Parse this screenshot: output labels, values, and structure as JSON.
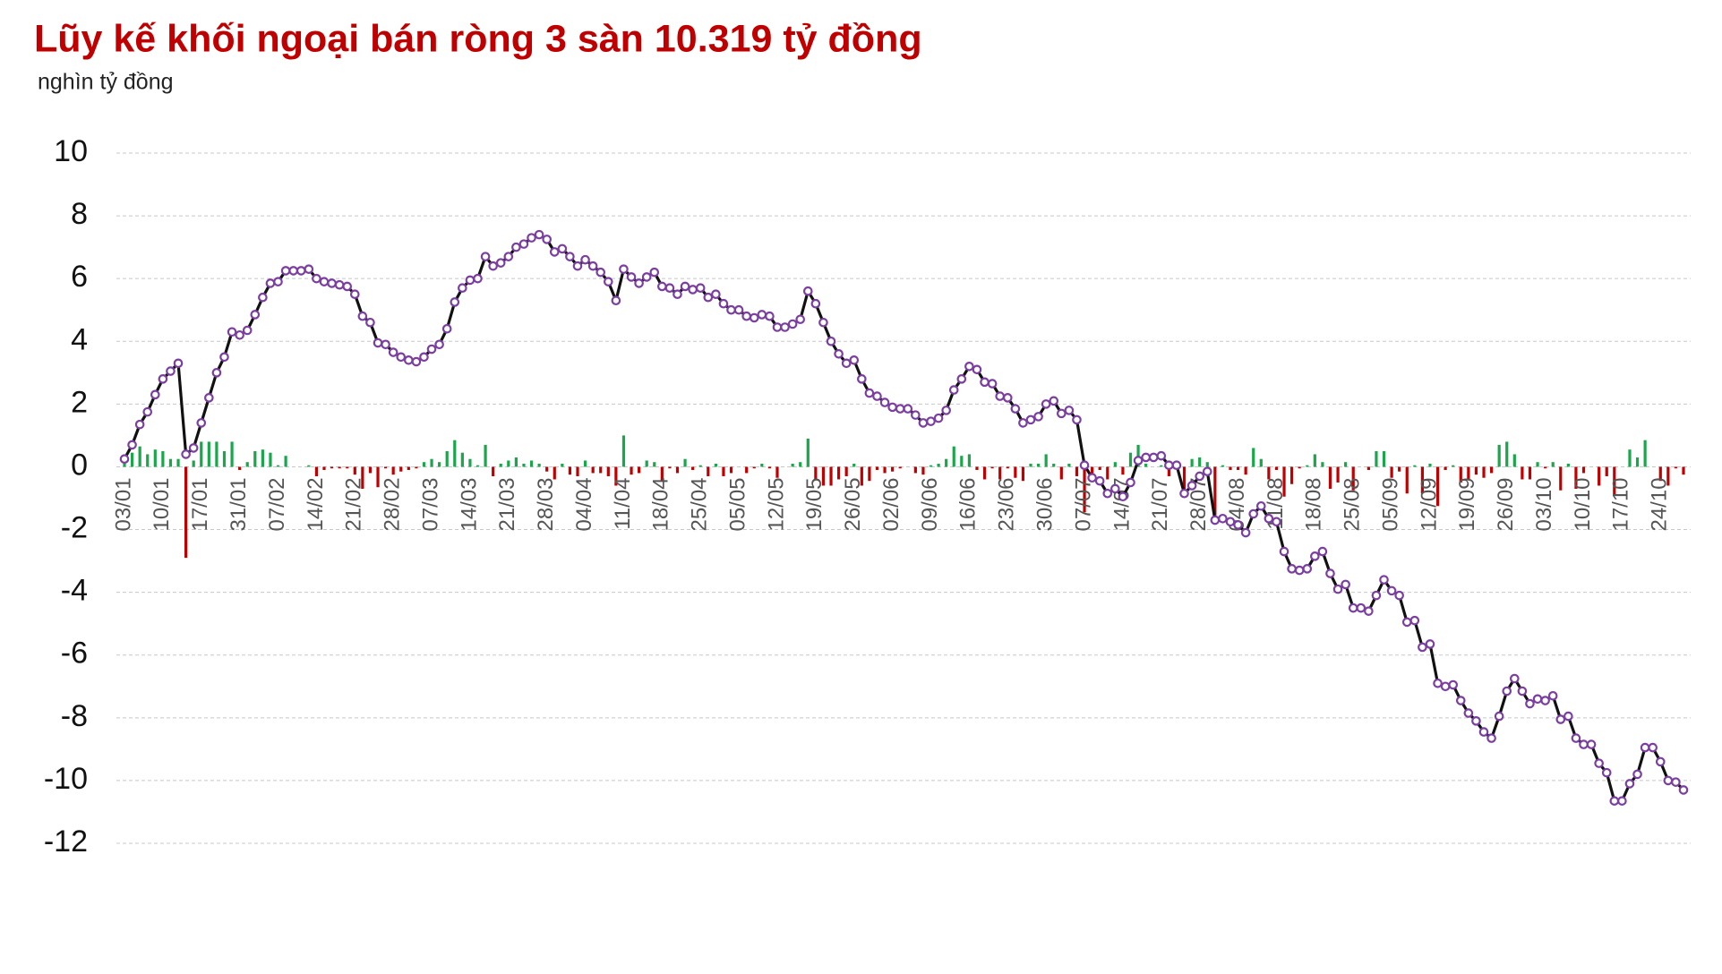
{
  "chart_data": {
    "type": "line_bar",
    "title": "Lũy kế khối ngoại bán ròng 3 sàn 10.319 tỷ đồng",
    "subtitle": "nghìn tỷ đồng",
    "title_color": "#c00000",
    "categories": [
      "03/01",
      null,
      null,
      null,
      null,
      "10/01",
      null,
      null,
      null,
      null,
      "17/01",
      null,
      null,
      null,
      null,
      "31/01",
      null,
      null,
      null,
      null,
      "07/02",
      null,
      null,
      null,
      null,
      "14/02",
      null,
      null,
      null,
      null,
      "21/02",
      null,
      null,
      null,
      null,
      "28/02",
      null,
      null,
      null,
      null,
      "07/03",
      null,
      null,
      null,
      null,
      "14/03",
      null,
      null,
      null,
      null,
      "21/03",
      null,
      null,
      null,
      null,
      "28/03",
      null,
      null,
      null,
      null,
      "04/04",
      null,
      null,
      null,
      null,
      "11/04",
      null,
      null,
      null,
      null,
      "18/04",
      null,
      null,
      null,
      null,
      "25/04",
      null,
      null,
      null,
      null,
      "05/05",
      null,
      null,
      null,
      null,
      "12/05",
      null,
      null,
      null,
      null,
      "19/05",
      null,
      null,
      null,
      null,
      "26/05",
      null,
      null,
      null,
      null,
      "02/06",
      null,
      null,
      null,
      null,
      "09/06",
      null,
      null,
      null,
      null,
      "16/06",
      null,
      null,
      null,
      null,
      "23/06",
      null,
      null,
      null,
      null,
      "30/06",
      null,
      null,
      null,
      null,
      "07/07",
      null,
      null,
      null,
      null,
      "14/07",
      null,
      null,
      null,
      null,
      "21/07",
      null,
      null,
      null,
      null,
      "28/07",
      null,
      null,
      null,
      null,
      "04/08",
      null,
      null,
      null,
      null,
      "11/08",
      null,
      null,
      null,
      null,
      "18/08",
      null,
      null,
      null,
      null,
      "25/08",
      null,
      null,
      null,
      null,
      "05/09",
      null,
      null,
      null,
      null,
      "12/09",
      null,
      null,
      null,
      null,
      "19/09",
      null,
      null,
      null,
      null,
      "26/09",
      null,
      null,
      null,
      null,
      "03/10",
      null,
      null,
      null,
      null,
      "10/10",
      null,
      null,
      null,
      null,
      "17/10",
      null,
      null,
      null,
      null,
      "24/10",
      null,
      null,
      null
    ],
    "line": {
      "color": "#111111",
      "marker_color": "#7b3fa0",
      "values": [
        0.25,
        0.7,
        1.35,
        1.75,
        2.3,
        2.8,
        3.05,
        3.3,
        0.4,
        0.6,
        1.4,
        2.2,
        3.0,
        3.5,
        4.3,
        4.2,
        4.35,
        4.85,
        5.4,
        5.85,
        5.9,
        6.25,
        6.25,
        6.25,
        6.3,
        6.0,
        5.9,
        5.85,
        5.8,
        5.75,
        5.5,
        4.8,
        4.6,
        3.95,
        3.9,
        3.65,
        3.5,
        3.4,
        3.35,
        3.5,
        3.75,
        3.9,
        4.4,
        5.25,
        5.7,
        5.95,
        6.0,
        6.7,
        6.4,
        6.5,
        6.7,
        7.0,
        7.1,
        7.3,
        7.4,
        7.25,
        6.85,
        6.95,
        6.7,
        6.4,
        6.6,
        6.4,
        6.2,
        5.9,
        5.3,
        6.3,
        6.05,
        5.85,
        6.05,
        6.2,
        5.75,
        5.7,
        5.5,
        5.75,
        5.65,
        5.7,
        5.4,
        5.5,
        5.2,
        5.0,
        5.0,
        4.8,
        4.75,
        4.85,
        4.8,
        4.45,
        4.45,
        4.55,
        4.7,
        5.6,
        5.2,
        4.6,
        4.0,
        3.6,
        3.3,
        3.4,
        2.8,
        2.35,
        2.25,
        2.05,
        1.9,
        1.85,
        1.85,
        1.65,
        1.4,
        1.45,
        1.55,
        1.8,
        2.45,
        2.8,
        3.2,
        3.1,
        2.7,
        2.65,
        2.25,
        2.2,
        1.85,
        1.4,
        1.5,
        1.6,
        2.0,
        2.1,
        1.7,
        1.8,
        1.5,
        0.05,
        -0.35,
        -0.45,
        -0.85,
        -0.7,
        -0.95,
        -0.5,
        0.2,
        0.3,
        0.3,
        0.35,
        0.05,
        0.05,
        -0.85,
        -0.6,
        -0.3,
        -0.15,
        -1.7,
        -1.65,
        -1.75,
        -1.85,
        -2.1,
        -1.5,
        -1.25,
        -1.65,
        -1.75,
        -2.7,
        -3.25,
        -3.3,
        -3.25,
        -2.85,
        -2.7,
        -3.4,
        -3.9,
        -3.75,
        -4.5,
        -4.5,
        -4.6,
        -4.1,
        -3.6,
        -3.95,
        -4.1,
        -4.95,
        -4.9,
        -5.75,
        -5.65,
        -6.9,
        -7.0,
        -6.95,
        -7.45,
        -7.85,
        -8.1,
        -8.45,
        -8.65,
        -7.95,
        -7.15,
        -6.75,
        -7.15,
        -7.55,
        -7.4,
        -7.45,
        -7.3,
        -8.05,
        -7.95,
        -8.65,
        -8.85,
        -8.85,
        -9.45,
        -9.75,
        -10.65,
        -10.65,
        -10.1,
        -9.8,
        -8.95,
        -8.95,
        -9.4,
        -10.0,
        -10.05,
        -10.3
      ]
    },
    "bars": {
      "positive_color": "#1aa64a",
      "negative_color": "#c00000",
      "values": [
        0.25,
        0.45,
        0.65,
        0.4,
        0.55,
        0.5,
        0.25,
        0.25,
        -2.9,
        0.2,
        0.8,
        0.8,
        0.8,
        0.5,
        0.8,
        -0.1,
        0.15,
        0.5,
        0.55,
        0.45,
        0.05,
        0.35,
        0,
        0,
        0.05,
        -0.3,
        -0.1,
        -0.05,
        -0.05,
        -0.05,
        -0.25,
        -0.7,
        -0.2,
        -0.65,
        -0.05,
        -0.25,
        -0.15,
        -0.1,
        -0.05,
        0.15,
        0.25,
        0.15,
        0.5,
        0.85,
        0.45,
        0.25,
        0.05,
        0.7,
        -0.3,
        0.1,
        0.2,
        0.3,
        0.1,
        0.2,
        0.1,
        -0.15,
        -0.4,
        0.1,
        -0.25,
        -0.3,
        0.2,
        -0.2,
        -0.2,
        -0.3,
        -0.6,
        1.0,
        -0.25,
        -0.2,
        0.2,
        0.15,
        -0.45,
        -0.05,
        -0.2,
        0.25,
        -0.1,
        0.05,
        -0.3,
        0.1,
        -0.3,
        -0.2,
        0,
        -0.2,
        -0.05,
        0.1,
        -0.05,
        -0.35,
        0,
        0.1,
        0.15,
        0.9,
        -0.4,
        -0.6,
        -0.6,
        -0.4,
        -0.3,
        0.1,
        -0.6,
        -0.45,
        -0.1,
        -0.2,
        -0.15,
        -0.05,
        0,
        -0.2,
        -0.25,
        0.05,
        0.1,
        0.25,
        0.65,
        0.35,
        0.4,
        -0.1,
        -0.4,
        -0.05,
        -0.4,
        -0.05,
        -0.35,
        -0.45,
        0.1,
        0.1,
        0.4,
        0.1,
        -0.4,
        0.1,
        -0.3,
        -1.45,
        -0.4,
        -0.1,
        -0.4,
        0.15,
        -0.25,
        0.45,
        0.7,
        0.1,
        0,
        0.05,
        -0.3,
        0,
        -0.9,
        0.25,
        0.3,
        0.15,
        -1.55,
        0.05,
        -0.1,
        -0.1,
        -0.25,
        0.6,
        0.25,
        -0.4,
        -0.1,
        -0.95,
        -0.55,
        -0.05,
        0.05,
        0.4,
        0.15,
        -0.7,
        -0.5,
        0.15,
        -0.75,
        0,
        -0.1,
        0.5,
        0.5,
        -0.35,
        -0.15,
        -0.85,
        0.05,
        -0.85,
        0.1,
        -1.25,
        -0.1,
        0.05,
        -0.5,
        -0.4,
        -0.25,
        -0.35,
        -0.2,
        0.7,
        0.8,
        0.4,
        -0.4,
        -0.4,
        0.15,
        -0.05,
        0.15,
        -0.75,
        0.1,
        -0.7,
        -0.2,
        0,
        -0.6,
        -0.3,
        -0.9,
        0,
        0.55,
        0.3,
        0.85,
        0,
        -0.45,
        -0.6,
        -0.05,
        -0.25
      ]
    },
    "ylim": [
      -12,
      10
    ],
    "yticks": [
      10,
      8,
      6,
      4,
      2,
      0,
      -2,
      -4,
      -6,
      -8,
      -10,
      -12
    ],
    "grid": true
  }
}
